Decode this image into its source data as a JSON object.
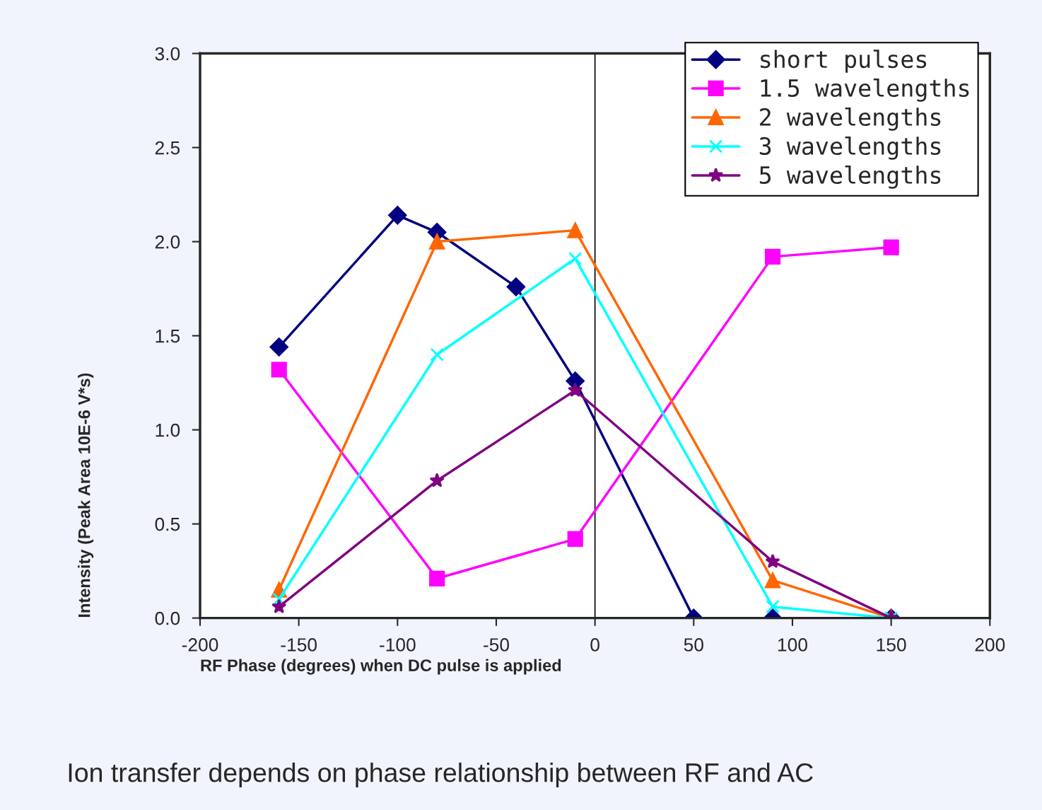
{
  "chart_data": {
    "type": "line",
    "xlabel": "RF Phase (degrees) when DC pulse is applied",
    "ylabel": "Intensity (Peak Area 10E-6 V*s)",
    "xlim": [
      -200,
      200
    ],
    "xticks": [
      -200,
      -150,
      -100,
      -50,
      0,
      50,
      100,
      150,
      200
    ],
    "ylim": [
      0,
      3.0
    ],
    "yticks": [
      {
        "value": 0,
        "label": "0.0"
      },
      0.5,
      {
        "value": 1,
        "label": "1.0"
      },
      1.5,
      {
        "value": 2,
        "label": "2.0"
      },
      2.5,
      {
        "value": 3,
        "label": "3.0"
      }
    ],
    "grid": false,
    "legend": "top right",
    "ref_lines": [
      {
        "axis": "x",
        "value": 0,
        "color": "#000000"
      }
    ],
    "annotations": [
      "Ion transfer depends on phase relationship between RF and AC"
    ],
    "series": [
      {
        "name": "short pulses",
        "color": "#000080",
        "marker": "diamond",
        "x": [
          -160,
          -100,
          -80,
          -40,
          -10,
          50,
          90,
          150
        ],
        "values": [
          1.44,
          2.14,
          2.05,
          1.76,
          1.26,
          0,
          0,
          0
        ]
      },
      {
        "name": "1.5 wavelengths",
        "color": "#ff00ff",
        "marker": "square",
        "x": [
          -160,
          -80,
          -10,
          90,
          150
        ],
        "values": [
          1.32,
          0.21,
          0.42,
          1.92,
          1.97
        ]
      },
      {
        "name": "2 wavelengths",
        "color": "#ff6600",
        "marker": "triangle",
        "x": [
          -160,
          -80,
          -10,
          90,
          150
        ],
        "values": [
          0.15,
          2.0,
          2.06,
          0.2,
          0
        ]
      },
      {
        "name": "3 wavelengths",
        "color": "#00ffff",
        "marker": "cross",
        "x": [
          -160,
          -80,
          -10,
          90,
          150
        ],
        "values": [
          0.1,
          1.4,
          1.91,
          0.06,
          0
        ]
      },
      {
        "name": "5 wavelengths",
        "color": "#800080",
        "marker": "star",
        "x": [
          -160,
          -80,
          -10,
          90,
          150
        ],
        "values": [
          0.06,
          0.73,
          1.21,
          0.3,
          0
        ]
      }
    ]
  }
}
